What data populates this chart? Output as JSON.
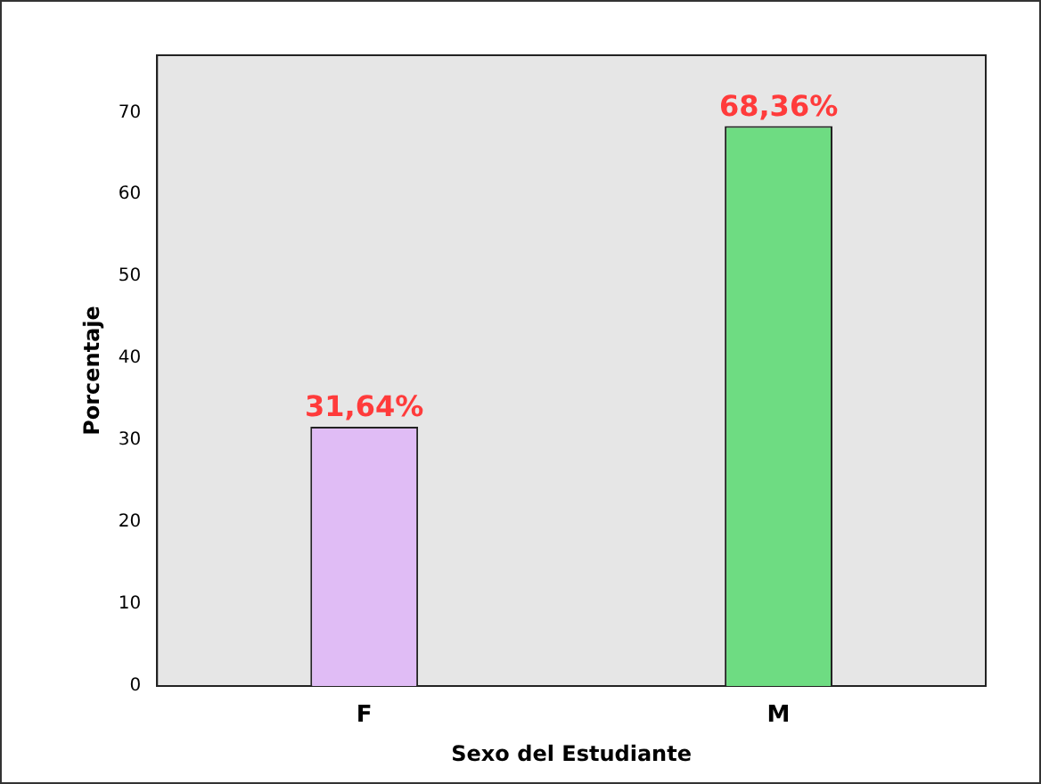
{
  "chart_data": {
    "type": "bar",
    "xlabel": "Sexo del Estudiante",
    "ylabel": "Porcentaje",
    "categories": [
      "F",
      "M"
    ],
    "values": [
      31.64,
      68.36
    ],
    "colors": [
      "#e0bcf5",
      "#6edc82"
    ],
    "value_labels": [
      "31,64%",
      "68,36%"
    ],
    "ylim": [
      0,
      77
    ],
    "yticks": [
      0,
      10,
      20,
      30,
      40,
      50,
      60,
      70
    ],
    "grid": false,
    "legend": false
  }
}
